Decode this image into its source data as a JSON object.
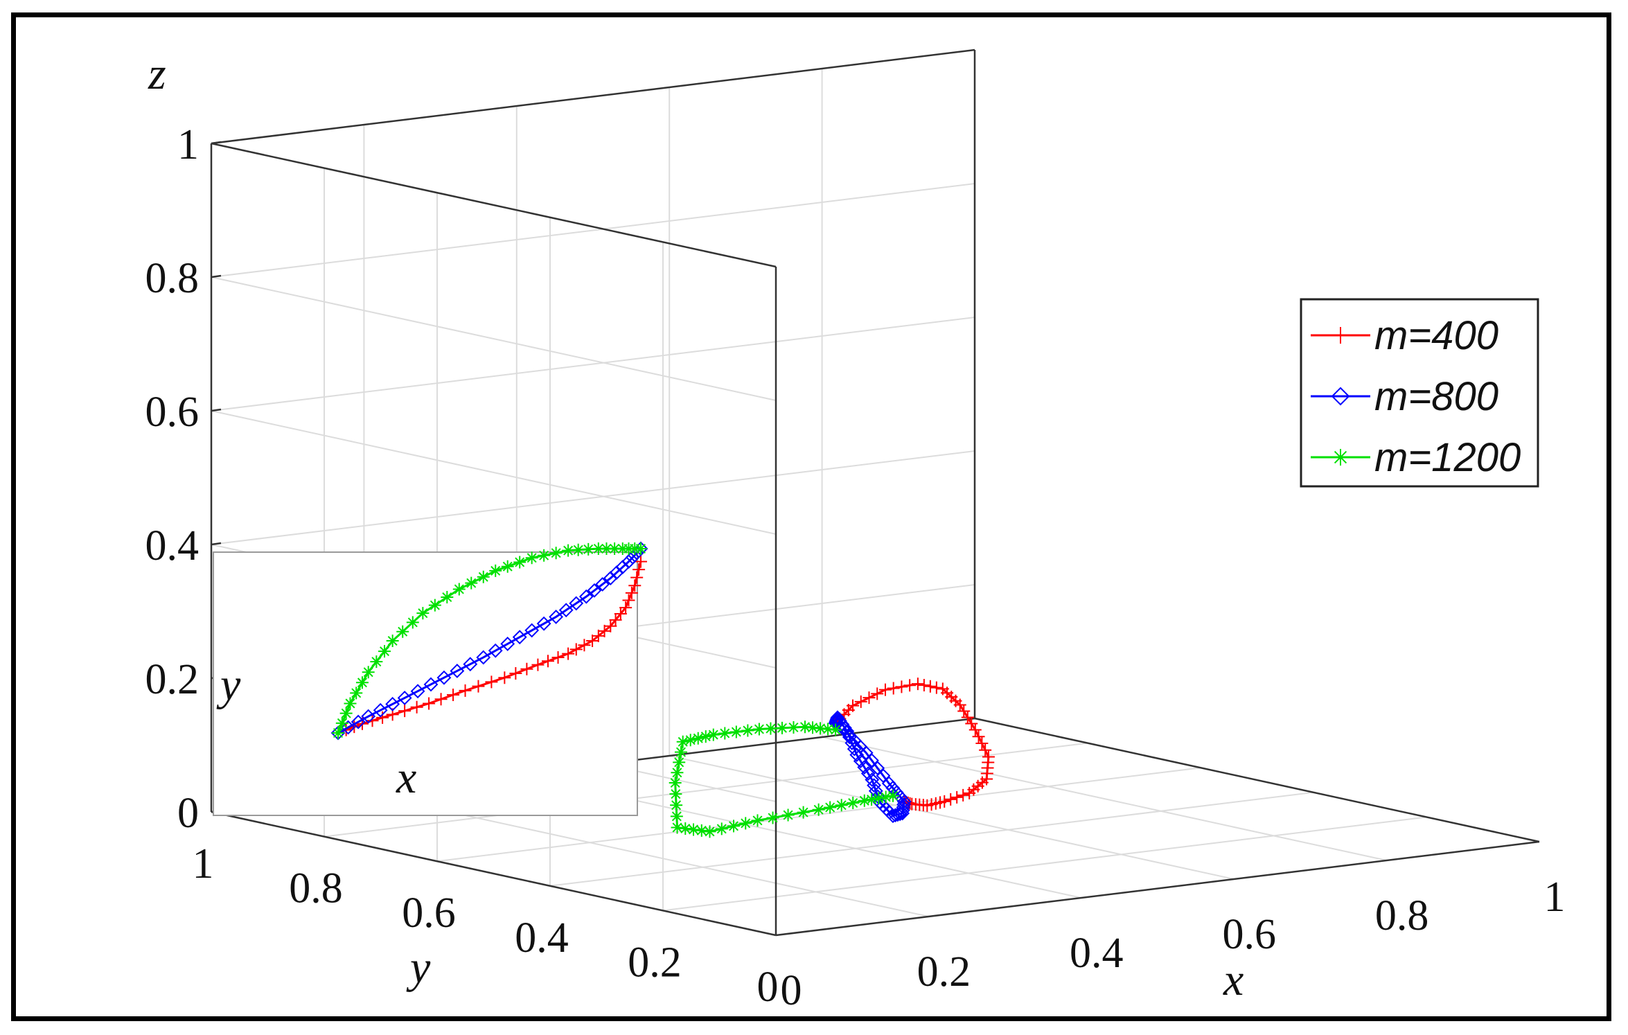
{
  "chart_data": {
    "type": "line",
    "projection": "3d",
    "xlabel": "x",
    "ylabel": "y",
    "zlabel": "z",
    "xlim": [
      0,
      1
    ],
    "ylim": [
      0,
      1
    ],
    "zlim": [
      0,
      1
    ],
    "grid": true,
    "legend_position": "right",
    "x_ticks": [
      "0",
      "0.2",
      "0.4",
      "0.6",
      "0.8",
      "1"
    ],
    "y_ticks": [
      "0",
      "0.2",
      "0.4",
      "0.6",
      "0.8",
      "1"
    ],
    "z_ticks": [
      "0",
      "0.2",
      "0.4",
      "0.6",
      "0.8",
      "1"
    ],
    "series": [
      {
        "name": "m=400",
        "color": "#ff0000",
        "marker": "plus",
        "x": [
          0.3,
          0.33,
          0.38,
          0.43,
          0.47,
          0.5,
          0.52,
          0.53,
          0.52,
          0.49,
          0.45,
          0.42,
          0.4,
          0.39
        ],
        "y": [
          0.3,
          0.31,
          0.32,
          0.33,
          0.34,
          0.35,
          0.35,
          0.34,
          0.33,
          0.32,
          0.31,
          0.3,
          0.3,
          0.3
        ],
        "z": [
          0.22,
          0.24,
          0.255,
          0.255,
          0.24,
          0.21,
          0.17,
          0.13,
          0.1,
          0.085,
          0.08,
          0.08,
          0.085,
          0.09
        ]
      },
      {
        "name": "m=800",
        "color": "#0000ff",
        "marker": "diamond",
        "x": [
          0.3,
          0.31,
          0.33,
          0.35,
          0.37,
          0.38,
          0.39,
          0.395,
          0.39,
          0.37,
          0.34,
          0.31
        ],
        "y": [
          0.3,
          0.31,
          0.32,
          0.33,
          0.33,
          0.33,
          0.32,
          0.31,
          0.3,
          0.3,
          0.3,
          0.3
        ],
        "z": [
          0.22,
          0.225,
          0.2,
          0.16,
          0.12,
          0.085,
          0.065,
          0.07,
          0.09,
          0.12,
          0.17,
          0.21
        ]
      },
      {
        "name": "m=1200",
        "color": "#00e000",
        "marker": "asterisk",
        "x": [
          0.3,
          0.26,
          0.2,
          0.14,
          0.1,
          0.09,
          0.1,
          0.15,
          0.22,
          0.3,
          0.36,
          0.39
        ],
        "y": [
          0.3,
          0.3,
          0.3,
          0.3,
          0.3,
          0.3,
          0.31,
          0.32,
          0.33,
          0.33,
          0.33,
          0.32
        ],
        "z": [
          0.21,
          0.22,
          0.225,
          0.225,
          0.22,
          0.16,
          0.09,
          0.075,
          0.08,
          0.085,
          0.09,
          0.095
        ]
      }
    ],
    "inset": {
      "xlabel": "x",
      "ylabel": "y",
      "series": [
        {
          "name": "m=400",
          "x": [
            0.0,
            0.08,
            0.18,
            0.3,
            0.42,
            0.55,
            0.66,
            0.76,
            0.84,
            0.9,
            0.95,
            0.98,
            1.0
          ],
          "y": [
            0.0,
            0.05,
            0.1,
            0.16,
            0.23,
            0.3,
            0.37,
            0.43,
            0.5,
            0.58,
            0.68,
            0.8,
            0.93
          ]
        },
        {
          "name": "m=800",
          "x": [
            0.0,
            0.1,
            0.22,
            0.35,
            0.48,
            0.6,
            0.72,
            0.82,
            0.9,
            0.96,
            1.0
          ],
          "y": [
            0.0,
            0.09,
            0.19,
            0.3,
            0.41,
            0.52,
            0.63,
            0.74,
            0.84,
            0.93,
            1.0
          ]
        },
        {
          "name": "m=1200",
          "x": [
            0.0,
            0.04,
            0.1,
            0.18,
            0.28,
            0.4,
            0.52,
            0.64,
            0.76,
            0.86,
            0.94,
            1.0
          ],
          "y": [
            0.0,
            0.16,
            0.33,
            0.5,
            0.65,
            0.78,
            0.88,
            0.95,
            0.99,
            1.0,
            1.0,
            1.0
          ]
        }
      ]
    }
  }
}
